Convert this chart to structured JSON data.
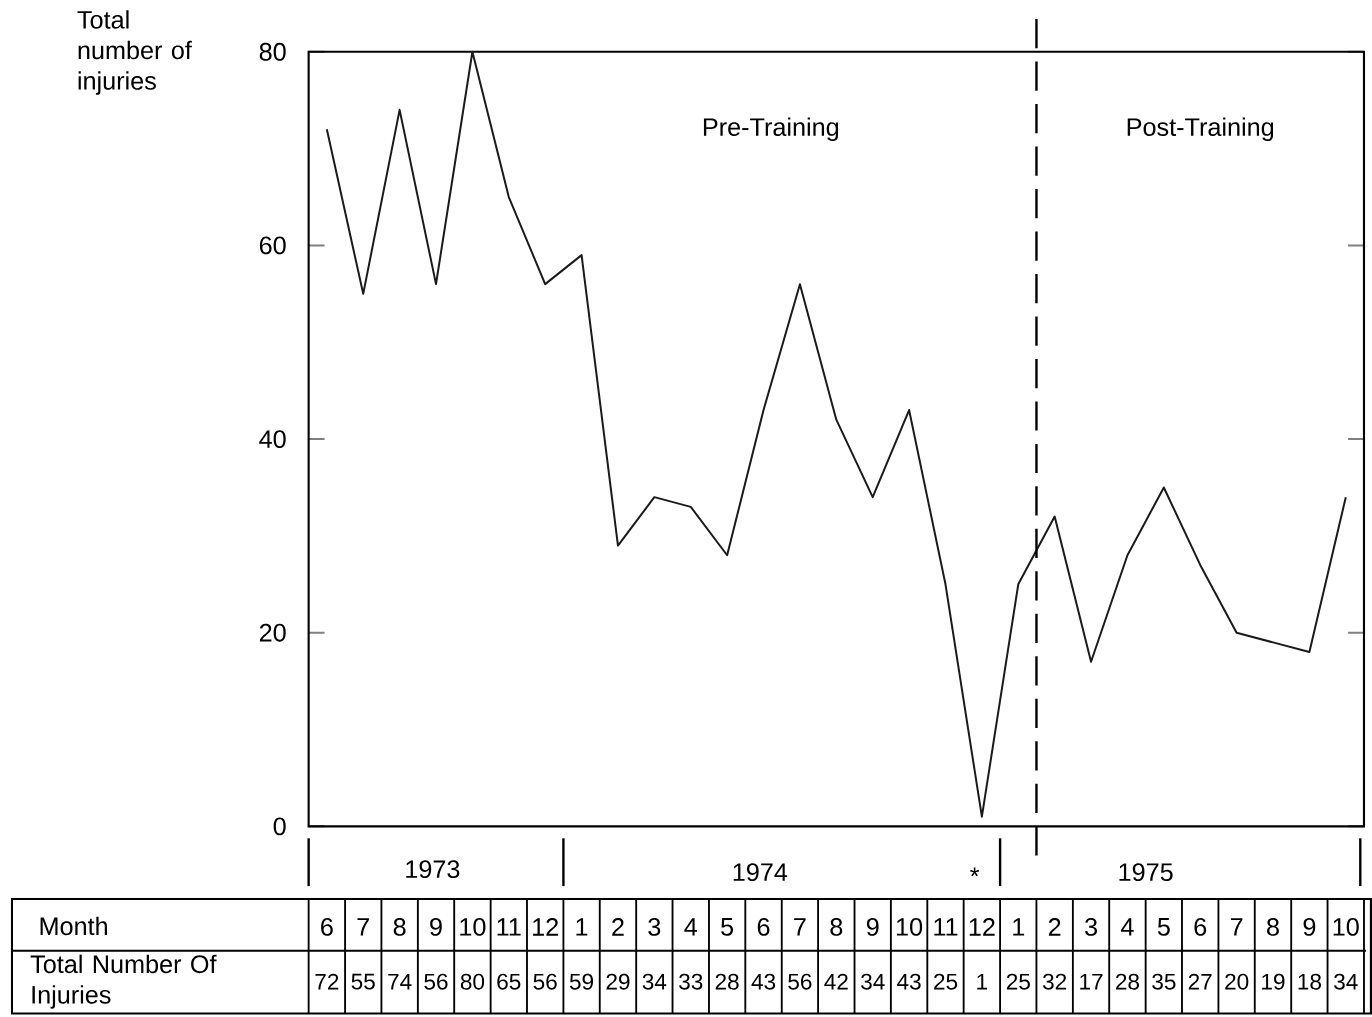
{
  "chart_data": {
    "type": "line",
    "ylabel": "Total number of injuries",
    "categories": [
      "6",
      "7",
      "8",
      "9",
      "10",
      "11",
      "12",
      "1",
      "2",
      "3",
      "4",
      "5",
      "6",
      "7",
      "8",
      "9",
      "10",
      "11",
      "12",
      "1",
      "2",
      "3",
      "4",
      "5",
      "6",
      "7",
      "8",
      "9",
      "10"
    ],
    "values": [
      72,
      55,
      74,
      56,
      80,
      65,
      56,
      59,
      29,
      34,
      33,
      28,
      43,
      56,
      42,
      34,
      43,
      25,
      1,
      25,
      32,
      17,
      28,
      35,
      27,
      20,
      19,
      18,
      34
    ],
    "color": "#1a1a1a",
    "ylim": [
      0,
      80
    ],
    "yticks": [
      0,
      20,
      40,
      60,
      80
    ],
    "marker": "none",
    "line_style": "solid",
    "data_labels": true,
    "annotations": [
      "Pre-Training",
      "Post-Training",
      "1973",
      "1974",
      "*",
      "1975",
      "Month",
      "Total Number Of Injuries"
    ]
  }
}
